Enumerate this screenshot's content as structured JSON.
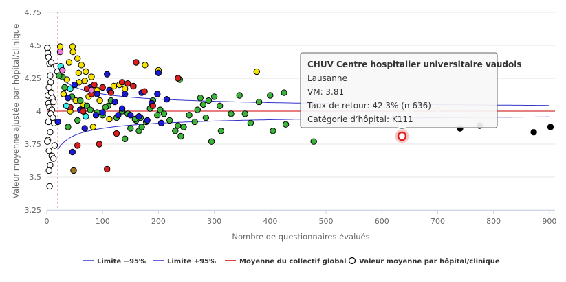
{
  "chart_data": {
    "type": "scatter",
    "xlabel": "Nombre de questionnaires évalués",
    "ylabel": "Valeur moyenne ajustée par hôpital/clinique",
    "xlim": [
      0,
      910
    ],
    "ylim": [
      3.25,
      4.75
    ],
    "x_ticks": [
      0,
      100,
      200,
      300,
      400,
      500,
      600,
      700,
      800,
      900
    ],
    "y_ticks": [
      3.25,
      3.5,
      3.75,
      4,
      4.25,
      4.5,
      4.75
    ],
    "y_tick_labels": [
      "3.25",
      "3.5",
      "3.75",
      "4",
      "4.25",
      "4.5",
      "4.75"
    ],
    "grid": "horizontal",
    "legend_position": "bottom",
    "legend": [
      {
        "key": "lower",
        "label": "Limite −95%",
        "color": "#3333cc",
        "kind": "line"
      },
      {
        "key": "upper",
        "label": "Limite +95%",
        "color": "#3333cc",
        "kind": "line"
      },
      {
        "key": "mean",
        "label": "Moyenne du collectif global",
        "color": "#cc0000",
        "kind": "line"
      },
      {
        "key": "points",
        "label": "Valeur moyenne par hôpital/clinique",
        "color": "#000000",
        "kind": "marker"
      }
    ],
    "global_mean": 4.0,
    "reference_x": 20,
    "limits_note": "4 ± 1.3/sqrt(n)",
    "colors": {
      "white": "#ffffff",
      "yellow": "#f7e200",
      "green": "#3cb43c",
      "blue": "#1a1adc",
      "red": "#dc1e1e",
      "black": "#000000",
      "cyan": "#33f0f0",
      "pink": "#f07ad8",
      "brown": "#a0781e",
      "lightgreen": "#cfe8cf"
    },
    "points": [
      {
        "x": 1,
        "y": 4.48,
        "c": "white"
      },
      {
        "x": 2,
        "y": 4.44,
        "c": "white"
      },
      {
        "x": 3,
        "y": 4.41,
        "c": "white"
      },
      {
        "x": 5,
        "y": 4.36,
        "c": "white"
      },
      {
        "x": 6,
        "y": 4.27,
        "c": "white"
      },
      {
        "x": 7,
        "y": 4.22,
        "c": "white"
      },
      {
        "x": 4,
        "y": 4.18,
        "c": "white"
      },
      {
        "x": 2,
        "y": 4.12,
        "c": "white"
      },
      {
        "x": 8,
        "y": 4.14,
        "c": "white"
      },
      {
        "x": 10,
        "y": 4.1,
        "c": "white"
      },
      {
        "x": 3,
        "y": 4.06,
        "c": "white"
      },
      {
        "x": 12,
        "y": 4.07,
        "c": "white"
      },
      {
        "x": 5,
        "y": 4.03,
        "c": "white"
      },
      {
        "x": 9,
        "y": 4.01,
        "c": "white"
      },
      {
        "x": 7,
        "y": 3.98,
        "c": "white"
      },
      {
        "x": 11,
        "y": 3.95,
        "c": "white"
      },
      {
        "x": 3,
        "y": 3.92,
        "c": "white"
      },
      {
        "x": 13,
        "y": 3.91,
        "c": "white"
      },
      {
        "x": 6,
        "y": 3.84,
        "c": "white"
      },
      {
        "x": 2,
        "y": 3.78,
        "c": "white"
      },
      {
        "x": 14,
        "y": 3.74,
        "c": "white"
      },
      {
        "x": 4,
        "y": 3.7,
        "c": "white"
      },
      {
        "x": 9,
        "y": 3.66,
        "c": "white"
      },
      {
        "x": 12,
        "y": 3.64,
        "c": "white"
      },
      {
        "x": 6,
        "y": 3.59,
        "c": "white"
      },
      {
        "x": 4,
        "y": 3.55,
        "c": "white"
      },
      {
        "x": 5,
        "y": 3.43,
        "c": "white"
      },
      {
        "x": 17,
        "y": 4.34,
        "c": "white"
      },
      {
        "x": 19,
        "y": 4.3,
        "c": "white"
      },
      {
        "x": 1,
        "y": 3.77,
        "c": "white"
      },
      {
        "x": 8,
        "y": 4.37,
        "c": "white"
      },
      {
        "x": 24,
        "y": 4.49,
        "c": "yellow"
      },
      {
        "x": 46,
        "y": 4.49,
        "c": "yellow"
      },
      {
        "x": 47,
        "y": 4.45,
        "c": "yellow"
      },
      {
        "x": 55,
        "y": 4.4,
        "c": "yellow"
      },
      {
        "x": 62,
        "y": 4.35,
        "c": "yellow"
      },
      {
        "x": 40,
        "y": 4.37,
        "c": "yellow"
      },
      {
        "x": 57,
        "y": 4.29,
        "c": "yellow"
      },
      {
        "x": 70,
        "y": 4.3,
        "c": "yellow"
      },
      {
        "x": 36,
        "y": 4.24,
        "c": "yellow"
      },
      {
        "x": 58,
        "y": 4.22,
        "c": "yellow"
      },
      {
        "x": 68,
        "y": 4.23,
        "c": "yellow"
      },
      {
        "x": 80,
        "y": 4.26,
        "c": "yellow"
      },
      {
        "x": 30,
        "y": 4.13,
        "c": "yellow"
      },
      {
        "x": 90,
        "y": 4.16,
        "c": "yellow"
      },
      {
        "x": 120,
        "y": 4.19,
        "c": "yellow"
      },
      {
        "x": 130,
        "y": 4.2,
        "c": "yellow"
      },
      {
        "x": 140,
        "y": 4.17,
        "c": "yellow"
      },
      {
        "x": 176,
        "y": 4.35,
        "c": "yellow"
      },
      {
        "x": 200,
        "y": 4.31,
        "c": "yellow"
      },
      {
        "x": 376,
        "y": 4.3,
        "c": "yellow"
      },
      {
        "x": 65,
        "y": 4.05,
        "c": "yellow"
      },
      {
        "x": 83,
        "y": 3.88,
        "c": "yellow"
      },
      {
        "x": 112,
        "y": 3.94,
        "c": "yellow"
      },
      {
        "x": 95,
        "y": 4.08,
        "c": "yellow"
      },
      {
        "x": 42,
        "y": 4.0,
        "c": "yellow"
      },
      {
        "x": 75,
        "y": 4.11,
        "c": "yellow"
      },
      {
        "x": 52,
        "y": 4.08,
        "c": "yellow"
      },
      {
        "x": 28,
        "y": 4.26,
        "c": "green"
      },
      {
        "x": 32,
        "y": 4.18,
        "c": "green"
      },
      {
        "x": 45,
        "y": 4.11,
        "c": "green"
      },
      {
        "x": 60,
        "y": 4.08,
        "c": "green"
      },
      {
        "x": 72,
        "y": 4.04,
        "c": "green"
      },
      {
        "x": 78,
        "y": 4.01,
        "c": "green"
      },
      {
        "x": 90,
        "y": 3.99,
        "c": "green"
      },
      {
        "x": 100,
        "y": 3.97,
        "c": "green"
      },
      {
        "x": 110,
        "y": 4.04,
        "c": "green"
      },
      {
        "x": 115,
        "y": 4.08,
        "c": "green"
      },
      {
        "x": 125,
        "y": 3.95,
        "c": "green"
      },
      {
        "x": 135,
        "y": 4.0,
        "c": "green"
      },
      {
        "x": 145,
        "y": 3.98,
        "c": "green"
      },
      {
        "x": 150,
        "y": 3.87,
        "c": "green"
      },
      {
        "x": 160,
        "y": 3.93,
        "c": "green"
      },
      {
        "x": 165,
        "y": 3.85,
        "c": "green"
      },
      {
        "x": 170,
        "y": 3.88,
        "c": "green"
      },
      {
        "x": 178,
        "y": 3.92,
        "c": "green"
      },
      {
        "x": 185,
        "y": 4.02,
        "c": "green"
      },
      {
        "x": 190,
        "y": 4.08,
        "c": "green"
      },
      {
        "x": 198,
        "y": 3.97,
        "c": "green"
      },
      {
        "x": 203,
        "y": 4.01,
        "c": "green"
      },
      {
        "x": 210,
        "y": 3.98,
        "c": "green"
      },
      {
        "x": 220,
        "y": 3.93,
        "c": "green"
      },
      {
        "x": 230,
        "y": 3.85,
        "c": "green"
      },
      {
        "x": 235,
        "y": 3.89,
        "c": "green"
      },
      {
        "x": 240,
        "y": 3.81,
        "c": "green"
      },
      {
        "x": 245,
        "y": 3.88,
        "c": "green"
      },
      {
        "x": 238,
        "y": 4.24,
        "c": "green"
      },
      {
        "x": 255,
        "y": 3.97,
        "c": "green"
      },
      {
        "x": 265,
        "y": 3.92,
        "c": "green"
      },
      {
        "x": 270,
        "y": 4.01,
        "c": "green"
      },
      {
        "x": 275,
        "y": 4.1,
        "c": "green"
      },
      {
        "x": 280,
        "y": 4.05,
        "c": "green"
      },
      {
        "x": 285,
        "y": 3.95,
        "c": "green"
      },
      {
        "x": 290,
        "y": 4.08,
        "c": "green"
      },
      {
        "x": 295,
        "y": 3.77,
        "c": "green"
      },
      {
        "x": 300,
        "y": 4.11,
        "c": "green"
      },
      {
        "x": 310,
        "y": 4.04,
        "c": "green"
      },
      {
        "x": 312,
        "y": 3.85,
        "c": "green"
      },
      {
        "x": 330,
        "y": 3.98,
        "c": "green"
      },
      {
        "x": 345,
        "y": 4.12,
        "c": "green"
      },
      {
        "x": 355,
        "y": 3.98,
        "c": "green"
      },
      {
        "x": 365,
        "y": 3.91,
        "c": "green"
      },
      {
        "x": 380,
        "y": 4.07,
        "c": "green"
      },
      {
        "x": 400,
        "y": 4.12,
        "c": "green"
      },
      {
        "x": 405,
        "y": 3.85,
        "c": "green"
      },
      {
        "x": 425,
        "y": 4.14,
        "c": "green"
      },
      {
        "x": 428,
        "y": 3.9,
        "c": "green"
      },
      {
        "x": 478,
        "y": 3.77,
        "c": "green"
      },
      {
        "x": 55,
        "y": 3.93,
        "c": "green"
      },
      {
        "x": 38,
        "y": 3.88,
        "c": "green"
      },
      {
        "x": 140,
        "y": 3.79,
        "c": "green"
      },
      {
        "x": 158,
        "y": 3.94,
        "c": "green"
      },
      {
        "x": 22,
        "y": 4.27,
        "c": "green"
      },
      {
        "x": 105,
        "y": 4.03,
        "c": "green"
      },
      {
        "x": 168,
        "y": 3.95,
        "c": "green"
      },
      {
        "x": 20,
        "y": 3.92,
        "c": "blue"
      },
      {
        "x": 38,
        "y": 4.1,
        "c": "blue"
      },
      {
        "x": 50,
        "y": 4.2,
        "c": "blue"
      },
      {
        "x": 60,
        "y": 4.01,
        "c": "blue"
      },
      {
        "x": 68,
        "y": 3.87,
        "c": "blue"
      },
      {
        "x": 78,
        "y": 4.18,
        "c": "blue"
      },
      {
        "x": 88,
        "y": 3.97,
        "c": "blue"
      },
      {
        "x": 108,
        "y": 4.28,
        "c": "blue"
      },
      {
        "x": 112,
        "y": 4.16,
        "c": "blue"
      },
      {
        "x": 122,
        "y": 4.07,
        "c": "blue"
      },
      {
        "x": 128,
        "y": 3.97,
        "c": "blue"
      },
      {
        "x": 135,
        "y": 4.02,
        "c": "blue"
      },
      {
        "x": 140,
        "y": 4.13,
        "c": "blue"
      },
      {
        "x": 150,
        "y": 3.97,
        "c": "blue"
      },
      {
        "x": 155,
        "y": 4.19,
        "c": "blue"
      },
      {
        "x": 165,
        "y": 3.96,
        "c": "blue"
      },
      {
        "x": 170,
        "y": 4.14,
        "c": "blue"
      },
      {
        "x": 180,
        "y": 3.93,
        "c": "blue"
      },
      {
        "x": 188,
        "y": 4.06,
        "c": "blue"
      },
      {
        "x": 198,
        "y": 4.13,
        "c": "blue"
      },
      {
        "x": 200,
        "y": 4.29,
        "c": "blue"
      },
      {
        "x": 205,
        "y": 3.91,
        "c": "blue"
      },
      {
        "x": 215,
        "y": 4.09,
        "c": "blue"
      },
      {
        "x": 46,
        "y": 3.69,
        "c": "blue"
      },
      {
        "x": 90,
        "y": 4.13,
        "c": "blue"
      },
      {
        "x": 100,
        "y": 3.99,
        "c": "blue"
      },
      {
        "x": 42,
        "y": 4.03,
        "c": "red"
      },
      {
        "x": 55,
        "y": 3.74,
        "c": "red"
      },
      {
        "x": 65,
        "y": 4.0,
        "c": "red"
      },
      {
        "x": 72,
        "y": 4.17,
        "c": "red"
      },
      {
        "x": 85,
        "y": 4.2,
        "c": "red"
      },
      {
        "x": 94,
        "y": 3.75,
        "c": "red"
      },
      {
        "x": 100,
        "y": 4.18,
        "c": "red"
      },
      {
        "x": 108,
        "y": 3.56,
        "c": "red"
      },
      {
        "x": 115,
        "y": 4.14,
        "c": "red"
      },
      {
        "x": 125,
        "y": 3.83,
        "c": "red"
      },
      {
        "x": 135,
        "y": 4.22,
        "c": "red"
      },
      {
        "x": 145,
        "y": 4.21,
        "c": "red"
      },
      {
        "x": 155,
        "y": 4.19,
        "c": "red"
      },
      {
        "x": 160,
        "y": 4.37,
        "c": "red"
      },
      {
        "x": 175,
        "y": 4.15,
        "c": "red"
      },
      {
        "x": 190,
        "y": 4.04,
        "c": "red"
      },
      {
        "x": 235,
        "y": 4.25,
        "c": "red"
      },
      {
        "x": 80,
        "y": 4.13,
        "c": "red"
      },
      {
        "x": 740,
        "y": 3.87,
        "c": "black"
      },
      {
        "x": 775,
        "y": 3.89,
        "c": "black"
      },
      {
        "x": 872,
        "y": 3.84,
        "c": "black"
      },
      {
        "x": 902,
        "y": 3.88,
        "c": "black"
      },
      {
        "x": 42,
        "y": 4.17,
        "c": "cyan"
      },
      {
        "x": 35,
        "y": 4.04,
        "c": "cyan"
      },
      {
        "x": 70,
        "y": 3.96,
        "c": "cyan"
      },
      {
        "x": 25,
        "y": 4.34,
        "c": "cyan"
      },
      {
        "x": 24,
        "y": 4.45,
        "c": "pink"
      },
      {
        "x": 28,
        "y": 4.31,
        "c": "pink"
      },
      {
        "x": 80,
        "y": 4.16,
        "c": "pink"
      },
      {
        "x": 48,
        "y": 3.55,
        "c": "brown"
      },
      {
        "x": 580,
        "y": 3.91,
        "c": "lightgreen"
      },
      {
        "x": 605,
        "y": 4.08,
        "c": "lightgreen"
      },
      {
        "x": 650,
        "y": 4.0,
        "c": "lightgreen"
      },
      {
        "x": 700,
        "y": 4.02,
        "c": "lightgreen"
      }
    ],
    "highlight": {
      "x": 636,
      "y": 3.81
    }
  },
  "tooltip": {
    "title": "CHUV Centre hospitalier universitaire vaudois",
    "lines": [
      "Lausanne",
      "VM: 3.81",
      "Taux de retour: 42.3% (n 636)",
      "Catégorie d’hôpital: K111"
    ]
  }
}
